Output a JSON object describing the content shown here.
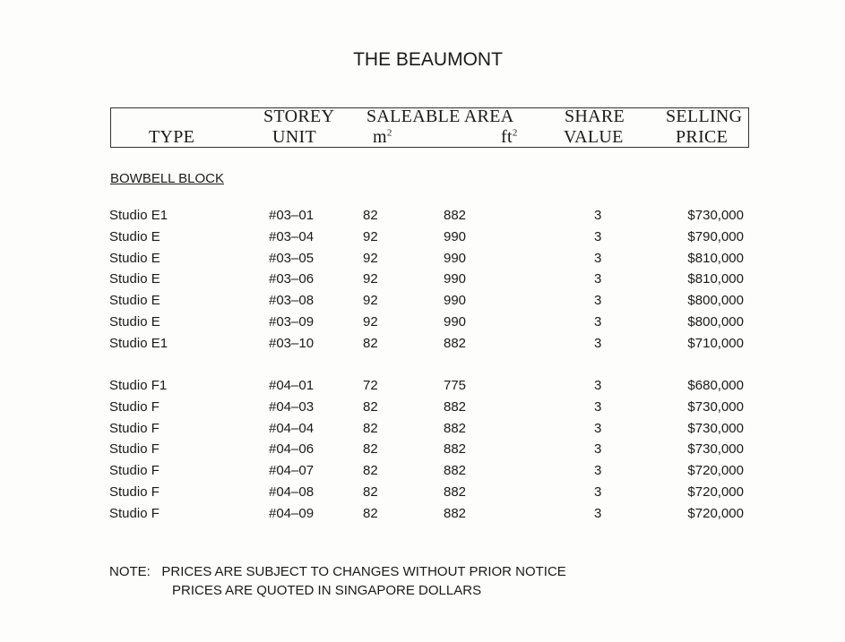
{
  "title": "THE BEAUMONT",
  "header": {
    "type": "TYPE",
    "storey": "STOREY",
    "unit": "UNIT",
    "saleable_area": "SALEABLE AREA",
    "m2": "m",
    "ft2": "ft",
    "sq": "2",
    "share": "SHARE",
    "value": "VALUE",
    "selling": "SELLING",
    "price": "PRICE"
  },
  "block_name": "BOWBELL BLOCK",
  "groups": [
    [
      {
        "type": "Studio E1",
        "unit": "#03–01",
        "m2": "82",
        "ft2": "882",
        "share": "3",
        "price": "$730,000"
      },
      {
        "type": "Studio E",
        "unit": "#03–04",
        "m2": "92",
        "ft2": "990",
        "share": "3",
        "price": "$790,000"
      },
      {
        "type": "Studio E",
        "unit": "#03–05",
        "m2": "92",
        "ft2": "990",
        "share": "3",
        "price": "$810,000"
      },
      {
        "type": "Studio E",
        "unit": "#03–06",
        "m2": "92",
        "ft2": "990",
        "share": "3",
        "price": "$810,000"
      },
      {
        "type": "Studio E",
        "unit": "#03–08",
        "m2": "92",
        "ft2": "990",
        "share": "3",
        "price": "$800,000"
      },
      {
        "type": "Studio E",
        "unit": "#03–09",
        "m2": "92",
        "ft2": "990",
        "share": "3",
        "price": "$800,000"
      },
      {
        "type": "Studio E1",
        "unit": "#03–10",
        "m2": "82",
        "ft2": "882",
        "share": "3",
        "price": "$710,000"
      }
    ],
    [
      {
        "type": "Studio F1",
        "unit": "#04–01",
        "m2": "72",
        "ft2": "775",
        "share": "3",
        "price": "$680,000"
      },
      {
        "type": "Studio F",
        "unit": "#04–03",
        "m2": "82",
        "ft2": "882",
        "share": "3",
        "price": "$730,000"
      },
      {
        "type": "Studio F",
        "unit": "#04–04",
        "m2": "82",
        "ft2": "882",
        "share": "3",
        "price": "$730,000"
      },
      {
        "type": "Studio F",
        "unit": "#04–06",
        "m2": "82",
        "ft2": "882",
        "share": "3",
        "price": "$730,000"
      },
      {
        "type": "Studio F",
        "unit": "#04–07",
        "m2": "82",
        "ft2": "882",
        "share": "3",
        "price": "$720,000"
      },
      {
        "type": "Studio F",
        "unit": "#04–08",
        "m2": "82",
        "ft2": "882",
        "share": "3",
        "price": "$720,000"
      },
      {
        "type": "Studio F",
        "unit": "#04–09",
        "m2": "82",
        "ft2": "882",
        "share": "3",
        "price": "$720,000"
      }
    ]
  ],
  "note": {
    "label": "NOTE:",
    "line1": "PRICES ARE SUBJECT TO CHANGES WITHOUT PRIOR NOTICE",
    "line2": "PRICES ARE QUOTED IN SINGAPORE DOLLARS"
  }
}
